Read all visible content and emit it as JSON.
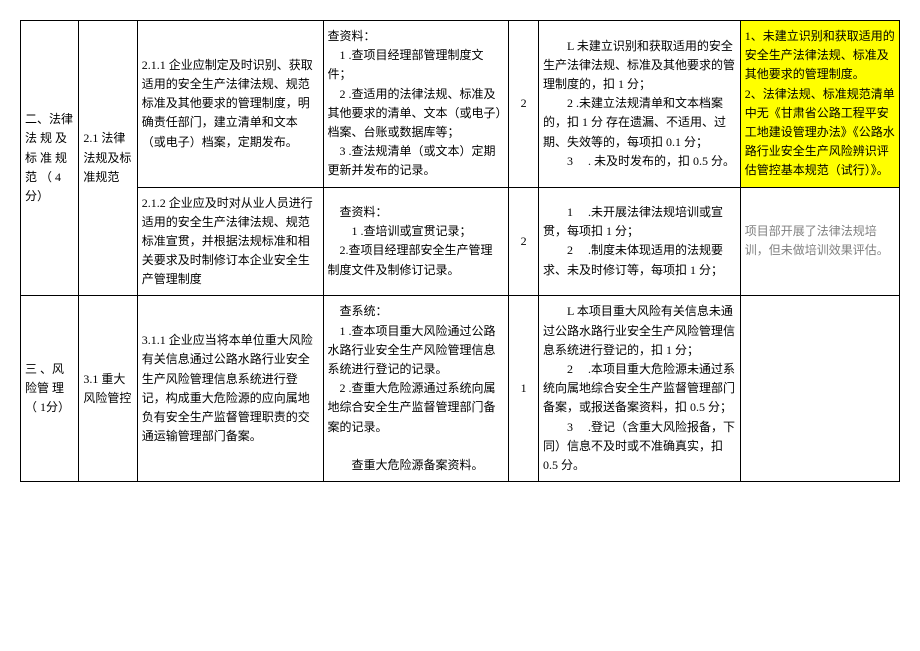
{
  "rows": [
    {
      "cat1": "二、法律 法 规 及标 准 规范 （ 4分）",
      "cat2": "2.1 法律法规及标准规范",
      "req": "2.1.1 企业应制定及时识别、获取适用的安全生产法律法规、规范标准及其他要求的管理制度，明确责任部门，建立清单和文本（或电子）档案，定期发布。",
      "check": "查资料：\n　1 .查项目经理部管理制度文件；\n　2 .查适用的法律法规、标准及其他要求的清单、文本（或电子）档案、台账或数据库等；\n　3 .查法规清单（或文本）定期更新并发布的记录。",
      "score": "2",
      "deduct": "　　L 未建立识别和获取适用的安全生产法律法规、标准及其他要求的管理制度的，扣 1 分；\n　　2 .未建立法规清单和文本档案的，扣 1 分 存在遗漏、不适用、过期、失效等的，每项扣 0.1 分；\n　　3 　. 未及时发布的，扣 0.5 分。",
      "note": "1、未建立识别和获取适用的安全生产法律法规、标准及其他要求的管理制度。\n2、法律法规、标准规范清单中无《甘肃省公路工程平安工地建设管理办法》《公路水路行业安全生产风险辨识评估管控基本规范（试行）》。",
      "noteHighlight": true
    },
    {
      "req": "2.1.2 企业应及时对从业人员进行适用的安全生产法律法规、规范标准宣贯，并根据法规标准和相关要求及时制修订本企业安全生产管理制度",
      "check": "　查资料：\n　　1 .查培训或宣贯记录；\n　2.查项目经理部安全生产管理制度文件及制修订记录。",
      "score": "2",
      "deduct": "　　1 　.未开展法律法规培训或宣贯，每项扣 1 分；\n　　2 　.制度未体现适用的法规要求、未及时修订等，每项扣 1 分；",
      "note": "项目部开展了法律法规培训，但未做培训效果评估。",
      "noteGray": true
    },
    {
      "cat1": "三 、风险管 理 （ 1分）",
      "cat2": "3.1 重大风险管控",
      "req": "3.1.1 企业应当将本单位重大风险有关信息通过公路水路行业安全生产风险管理信息系统进行登记，构成重大危险源的应向属地负有安全生产监督管理职责的交通运输管理部门备案。",
      "check": "　查系统：\n　1 .查本项目重大风险通过公路水路行业安全生产风险管理信息系统进行登记的记录。\n　2 .查重大危险源通过系统向属地综合安全生产监督管理部门备案的记录。\n\n　　查重大危险源备案资料。",
      "score": "1",
      "deduct": "　　L 本项目重大风险有关信息未通过公路水路行业安全生产风险管理信息系统进行登记的，扣 1 分；\n　　2 　.本项目重大危险源未通过系统向属地综合安全生产监督管理部门备案，或报送备案资料，扣 0.5 分；\n　　3 　.登记（含重大风险报备，下同）信息不及时或不准确真实，扣0.5 分。",
      "note": ""
    }
  ]
}
